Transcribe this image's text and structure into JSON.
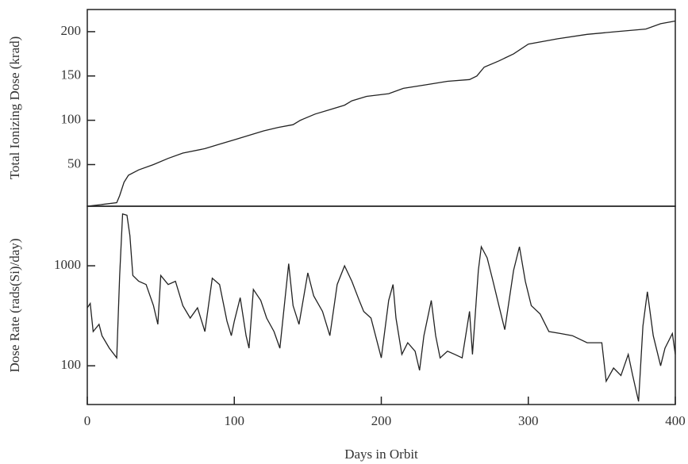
{
  "chart_data": [
    {
      "type": "line",
      "ylabel": "Total Ionizing Dose (krad)",
      "color": "#222222",
      "xlim": [
        0,
        400
      ],
      "ylim": [
        3,
        225
      ],
      "yticks": [
        50,
        100,
        150,
        200
      ],
      "log": false,
      "x": [
        0,
        10,
        20,
        22,
        25,
        28,
        35,
        45,
        55,
        65,
        80,
        90,
        100,
        110,
        120,
        130,
        140,
        145,
        155,
        165,
        175,
        180,
        190,
        205,
        215,
        230,
        245,
        260,
        265,
        270,
        280,
        290,
        300,
        320,
        340,
        360,
        380,
        390,
        400
      ],
      "values": [
        3,
        5,
        7,
        15,
        30,
        38,
        44,
        50,
        57,
        63,
        68,
        73,
        78,
        83,
        88,
        92,
        95,
        100,
        107,
        112,
        117,
        122,
        127,
        130,
        136,
        140,
        144,
        146,
        150,
        160,
        167,
        175,
        186,
        192,
        197,
        200,
        203,
        209,
        212
      ]
    },
    {
      "type": "line",
      "ylabel": "Dose Rate (rads(Si)/day)",
      "xlabel": "Days in Orbit",
      "color": "#222222",
      "xlim": [
        0,
        400
      ],
      "ylim": [
        41,
        3940
      ],
      "yticks": [
        100,
        1000
      ],
      "log": true,
      "xticks": [
        0,
        100,
        200,
        300,
        400
      ],
      "x": [
        0,
        2,
        4,
        8,
        10,
        15,
        20,
        22,
        24,
        27,
        29,
        31,
        35,
        40,
        45,
        48,
        50,
        55,
        60,
        65,
        70,
        75,
        80,
        85,
        90,
        95,
        98,
        100,
        104,
        108,
        110,
        113,
        118,
        122,
        127,
        131,
        137,
        140,
        144,
        150,
        154,
        160,
        165,
        170,
        175,
        180,
        185,
        188,
        193,
        200,
        205,
        208,
        210,
        214,
        218,
        223,
        226,
        229,
        234,
        237,
        240,
        245,
        250,
        255,
        260,
        262,
        266,
        268,
        272,
        276,
        280,
        284,
        290,
        294,
        298,
        302,
        308,
        314,
        322,
        330,
        340,
        350,
        353,
        358,
        363,
        368,
        371,
        375,
        378,
        381,
        385,
        390,
        393,
        398,
        400
      ],
      "values": [
        380,
        420,
        220,
        260,
        200,
        150,
        120,
        800,
        3300,
        3200,
        2000,
        800,
        700,
        650,
        400,
        260,
        800,
        650,
        700,
        400,
        300,
        380,
        220,
        750,
        650,
        280,
        200,
        280,
        480,
        200,
        150,
        580,
        450,
        300,
        220,
        150,
        1050,
        400,
        260,
        850,
        500,
        350,
        200,
        650,
        1000,
        700,
        450,
        350,
        300,
        120,
        450,
        650,
        300,
        130,
        170,
        140,
        90,
        200,
        450,
        200,
        120,
        140,
        130,
        120,
        350,
        130,
        900,
        1550,
        1200,
        700,
        400,
        230,
        900,
        1550,
        700,
        400,
        330,
        220,
        210,
        200,
        170,
        170,
        70,
        95,
        80,
        130,
        80,
        44,
        250,
        550,
        200,
        100,
        150,
        210,
        130
      ]
    }
  ]
}
